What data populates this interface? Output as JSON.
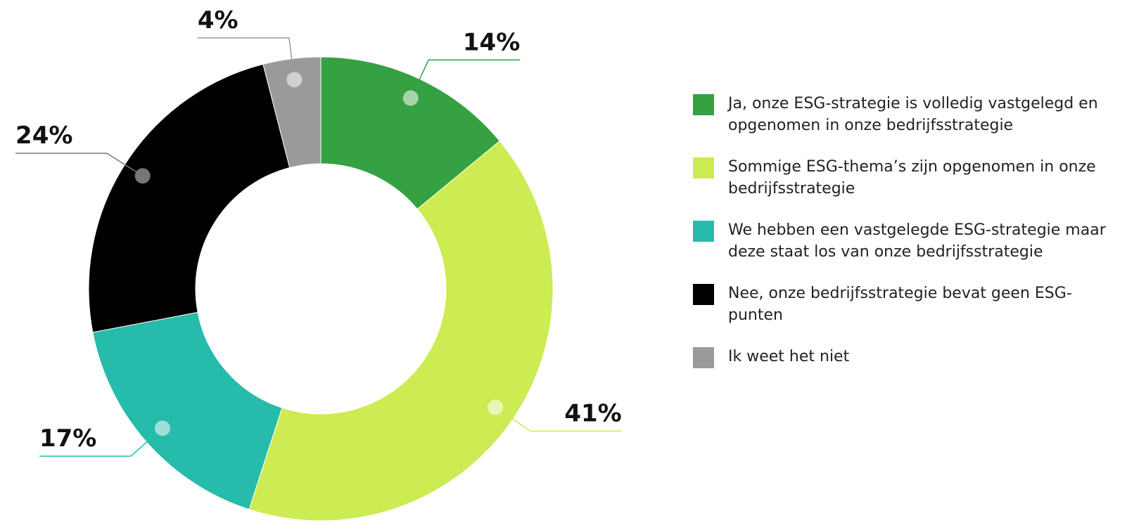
{
  "chart_data": {
    "type": "donut",
    "categories": [
      "Ja, onze ESG-strategie is volledig vastgelegd en opgenomen in onze bedrijfsstrategie",
      "Sommige ESG-thema’s zijn opgenomen in onze bedrijfsstrategie",
      "We hebben een vastgelegde ESG-strategie maar deze staat los van onze bedrijfsstrategie",
      "Nee, onze bedrijfsstrategie bevat geen ESG-punten",
      "Ik weet het niet"
    ],
    "values": [
      14,
      41,
      17,
      24,
      4
    ],
    "value_labels": [
      "14%",
      "41%",
      "17%",
      "24%",
      "4%"
    ],
    "colors": [
      "#35a142",
      "#cdeb52",
      "#26bbaa",
      "#000000",
      "#9a9a9a"
    ],
    "legend": "right"
  }
}
